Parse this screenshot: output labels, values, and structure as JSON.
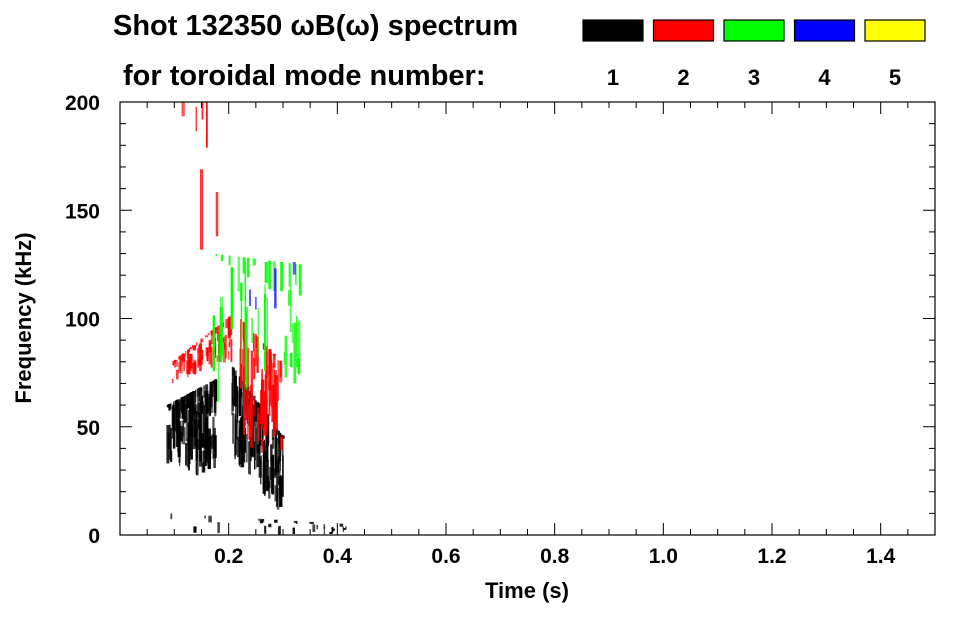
{
  "chart_data": {
    "type": "heatmap",
    "title_line1": "Shot 132350 ωB(ω) spectrum",
    "title_line2": "for toroidal mode number:",
    "xlabel": "Time (s)",
    "ylabel": "Frequency (kHz)",
    "xlim": [
      0,
      1.5
    ],
    "ylim": [
      0,
      200
    ],
    "xticks": [
      "0.2",
      "0.4",
      "0.6",
      "0.8",
      "1.0",
      "1.2",
      "1.4"
    ],
    "xtick_values": [
      0.2,
      0.4,
      0.6,
      0.8,
      1.0,
      1.2,
      1.4
    ],
    "yticks": [
      "0",
      "50",
      "100",
      "150",
      "200"
    ],
    "ytick_values": [
      0,
      50,
      100,
      150,
      200
    ],
    "legend": [
      {
        "mode": "1",
        "color": "#000000"
      },
      {
        "mode": "2",
        "color": "#ff0000"
      },
      {
        "mode": "3",
        "color": "#00ff00"
      },
      {
        "mode": "4",
        "color": "#0000ff"
      },
      {
        "mode": "5",
        "color": "#ffff00"
      }
    ],
    "clusters": [
      {
        "mode": 1,
        "t": [
          0.085,
          0.175
        ],
        "f_low": [
          30,
          25
        ],
        "f_high": [
          60,
          72
        ],
        "density": 140
      },
      {
        "mode": 1,
        "t": [
          0.205,
          0.3
        ],
        "f_low": [
          35,
          8
        ],
        "f_high": [
          78,
          45
        ],
        "density": 130
      },
      {
        "mode": 2,
        "t": [
          0.095,
          0.205
        ],
        "f_low": [
          70,
          80
        ],
        "f_high": [
          80,
          102
        ],
        "density": 90
      },
      {
        "mode": 2,
        "t": [
          0.22,
          0.295
        ],
        "f_low": [
          40,
          35
        ],
        "f_high": [
          100,
          80
        ],
        "density": 60
      },
      {
        "mode": 3,
        "t": [
          0.17,
          0.33
        ],
        "f_low": [
          60,
          70
        ],
        "f_high": [
          130,
          125
        ],
        "density": 40
      },
      {
        "mode": 1,
        "t": [
          0.09,
          0.42
        ],
        "f_low": [
          0,
          0
        ],
        "f_high": [
          10,
          5
        ],
        "density": 30
      },
      {
        "mode": 2,
        "t": [
          0.1,
          0.2
        ],
        "f_low": [
          130,
          130
        ],
        "f_high": [
          200,
          200
        ],
        "density": 6
      },
      {
        "mode": 4,
        "t": [
          0.2,
          0.35
        ],
        "f_low": [
          90,
          100
        ],
        "f_high": [
          130,
          125
        ],
        "density": 4
      }
    ]
  }
}
